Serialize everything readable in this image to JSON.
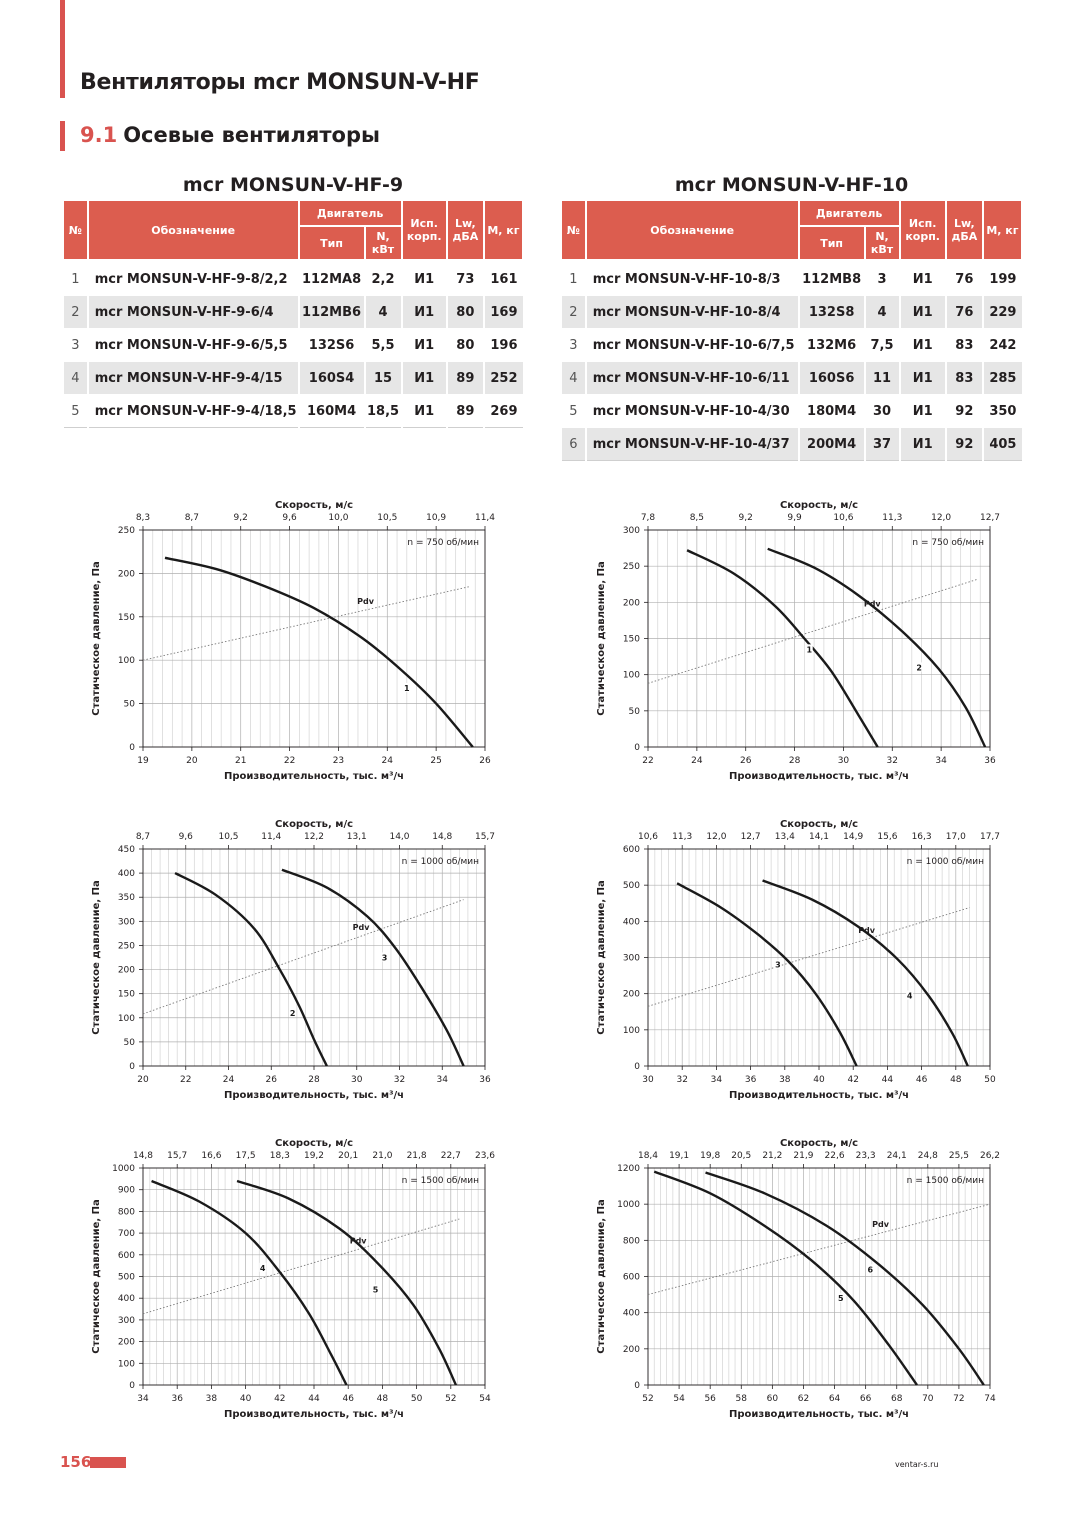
{
  "header": {
    "title": "Вентиляторы mcr MONSUN-V-HF",
    "section_number": "9.1",
    "section_title": "Осевые вентиляторы"
  },
  "table_headers": {
    "no": "№",
    "name": "Обозначение",
    "motor": "Двигатель",
    "type": "Тип",
    "power": "N, кВт",
    "housing": "Исп. корп.",
    "lw": "Lw, дБА",
    "mass": "М, кг"
  },
  "tables": [
    {
      "title": "mcr MONSUN-V-HF-9",
      "rows": [
        [
          "1",
          "mcr MONSUN-V-HF-9-8/2,2",
          "112MA8",
          "2,2",
          "И1",
          "73",
          "161"
        ],
        [
          "2",
          "mcr MONSUN-V-HF-9-6/4",
          "112MB6",
          "4",
          "И1",
          "80",
          "169"
        ],
        [
          "3",
          "mcr MONSUN-V-HF-9-6/5,5",
          "132S6",
          "5,5",
          "И1",
          "80",
          "196"
        ],
        [
          "4",
          "mcr MONSUN-V-HF-9-4/15",
          "160S4",
          "15",
          "И1",
          "89",
          "252"
        ],
        [
          "5",
          "mcr MONSUN-V-HF-9-4/18,5",
          "160M4",
          "18,5",
          "И1",
          "89",
          "269"
        ]
      ]
    },
    {
      "title": "mcr MONSUN-V-HF-10",
      "rows": [
        [
          "1",
          "mcr MONSUN-V-HF-10-8/3",
          "112MB8",
          "3",
          "И1",
          "76",
          "199"
        ],
        [
          "2",
          "mcr MONSUN-V-HF-10-8/4",
          "132S8",
          "4",
          "И1",
          "76",
          "229"
        ],
        [
          "3",
          "mcr MONSUN-V-HF-10-6/7,5",
          "132M6",
          "7,5",
          "И1",
          "83",
          "242"
        ],
        [
          "4",
          "mcr MONSUN-V-HF-10-6/11",
          "160S6",
          "11",
          "И1",
          "83",
          "285"
        ],
        [
          "5",
          "mcr MONSUN-V-HF-10-4/30",
          "180M4",
          "30",
          "И1",
          "92",
          "350"
        ],
        [
          "6",
          "mcr MONSUN-V-HF-10-4/37",
          "200M4",
          "37",
          "И1",
          "92",
          "405"
        ]
      ]
    }
  ],
  "chart_data": [
    {
      "type": "line",
      "speed_label": "Скорость, м/с",
      "xlabel": "Производительность, тыс. м³/ч",
      "ylabel": "Статическое давление, Па",
      "rpm_label": "n = 750 об/мин",
      "pdv_label": "Pdv",
      "xlim": [
        19,
        26
      ],
      "ylim": [
        0,
        250
      ],
      "x_ticks": [
        19,
        20,
        21,
        22,
        23,
        24,
        25,
        26
      ],
      "y_ticks": [
        0,
        50,
        100,
        150,
        200,
        250
      ],
      "speed_ticks": [
        "8,3",
        "8,7",
        "9,2",
        "9,6",
        "10,0",
        "10,5",
        "10,9",
        "11,4"
      ],
      "series": [
        {
          "name": "1",
          "x": [
            19.45,
            20.5,
            21.5,
            22.5,
            23.5,
            24.3,
            25.0,
            25.75
          ],
          "y": [
            218,
            205,
            185,
            160,
            125,
            88,
            50,
            0
          ],
          "label_at": [
            24.4,
            68
          ]
        }
      ],
      "pdv": {
        "x": [
          19,
          25.7
        ],
        "y": [
          100,
          185
        ]
      }
    },
    {
      "type": "line",
      "speed_label": "Скорость, м/с",
      "xlabel": "Производительность, тыс. м³/ч",
      "ylabel": "Статическое давление, Па",
      "rpm_label": "n = 750 об/мин",
      "pdv_label": "Pdv",
      "xlim": [
        22,
        36
      ],
      "ylim": [
        0,
        300
      ],
      "x_ticks": [
        22,
        24,
        26,
        28,
        30,
        32,
        34,
        36
      ],
      "y_ticks": [
        0,
        50,
        100,
        150,
        200,
        250,
        300
      ],
      "speed_ticks": [
        "7,8",
        "8,5",
        "9,2",
        "9,9",
        "10,6",
        "11,3",
        "12,0",
        "12,7"
      ],
      "series": [
        {
          "name": "1",
          "x": [
            23.6,
            25.5,
            27.2,
            28.4,
            29.5,
            30.6,
            31.4
          ],
          "y": [
            272,
            240,
            195,
            150,
            105,
            45,
            0
          ],
          "label_at": [
            28.6,
            135
          ]
        },
        {
          "name": "2",
          "x": [
            26.9,
            28.8,
            30.6,
            32.4,
            33.9,
            35.0,
            35.8
          ],
          "y": [
            274,
            248,
            210,
            160,
            108,
            55,
            0
          ],
          "label_at": [
            33.1,
            110
          ]
        }
      ],
      "pdv": {
        "x": [
          22,
          35.5
        ],
        "y": [
          88,
          232
        ]
      }
    },
    {
      "type": "line",
      "speed_label": "Скорость, м/с",
      "xlabel": "Производительность, тыс. м³/ч",
      "ylabel": "Статическое давление, Па",
      "rpm_label": "n = 1000 об/мин",
      "pdv_label": "Pdv",
      "xlim": [
        20,
        36
      ],
      "ylim": [
        0,
        450
      ],
      "x_ticks": [
        20,
        22,
        24,
        26,
        28,
        30,
        32,
        34,
        36
      ],
      "y_ticks": [
        0,
        50,
        100,
        150,
        200,
        250,
        300,
        350,
        400,
        450
      ],
      "speed_ticks": [
        "8,7",
        "9,6",
        "10,5",
        "11,4",
        "12,2",
        "13,1",
        "14,0",
        "14,8",
        "15,7"
      ],
      "series": [
        {
          "name": "2",
          "x": [
            21.5,
            23.4,
            25.2,
            26.4,
            27.3,
            28.0,
            28.6
          ],
          "y": [
            400,
            355,
            285,
            200,
            125,
            55,
            0
          ],
          "label_at": [
            27.0,
            110
          ]
        },
        {
          "name": "3",
          "x": [
            26.5,
            28.6,
            30.5,
            31.8,
            33.0,
            34.2,
            35.0
          ],
          "y": [
            407,
            370,
            310,
            245,
            165,
            75,
            0
          ],
          "label_at": [
            31.3,
            225
          ]
        }
      ],
      "pdv": {
        "x": [
          20,
          35
        ],
        "y": [
          108,
          345
        ]
      }
    },
    {
      "type": "line",
      "speed_label": "Скорость, м/с",
      "xlabel": "Производительность, тыс. м³/ч",
      "ylabel": "Статическое давление, Па",
      "rpm_label": "n = 1000 об/мин",
      "pdv_label": "Pdv",
      "xlim": [
        30,
        50
      ],
      "ylim": [
        0,
        600
      ],
      "x_ticks": [
        30,
        32,
        34,
        36,
        38,
        40,
        42,
        44,
        46,
        48,
        50
      ],
      "y_ticks": [
        0,
        100,
        200,
        300,
        400,
        500,
        600
      ],
      "speed_ticks": [
        "10,6",
        "11,3",
        "12,0",
        "12,7",
        "13,4",
        "14,1",
        "14,9",
        "15,6",
        "16,3",
        "17,0",
        "17,7"
      ],
      "series": [
        {
          "name": "3",
          "x": [
            31.7,
            34.2,
            36.4,
            38.2,
            39.8,
            41.2,
            42.2
          ],
          "y": [
            505,
            440,
            365,
            290,
            200,
            95,
            0
          ],
          "label_at": [
            37.6,
            280
          ]
        },
        {
          "name": "4",
          "x": [
            36.7,
            39.6,
            42.3,
            44.6,
            46.4,
            47.8,
            48.7
          ],
          "y": [
            513,
            460,
            385,
            295,
            195,
            90,
            0
          ],
          "label_at": [
            45.3,
            195
          ]
        }
      ],
      "pdv": {
        "x": [
          30,
          48.8
        ],
        "y": [
          165,
          438
        ]
      }
    },
    {
      "type": "line",
      "speed_label": "Скорость, м/с",
      "xlabel": "Производительность, тыс. м³/ч",
      "ylabel": "Статическое давление, Па",
      "rpm_label": "n = 1500 об/мин",
      "pdv_label": "Pdv",
      "xlim": [
        34,
        54
      ],
      "ylim": [
        0,
        1000
      ],
      "x_ticks": [
        34,
        36,
        38,
        40,
        42,
        44,
        46,
        48,
        50,
        52,
        54
      ],
      "y_ticks": [
        0,
        100,
        200,
        300,
        400,
        500,
        600,
        700,
        800,
        900,
        1000
      ],
      "speed_ticks": [
        "14,8",
        "15,7",
        "16,6",
        "17,5",
        "18,3",
        "19,2",
        "20,1",
        "21,0",
        "21,8",
        "22,7",
        "23,6"
      ],
      "series": [
        {
          "name": "4",
          "x": [
            34.5,
            37.3,
            40.0,
            42.0,
            43.7,
            45.0,
            45.9
          ],
          "y": [
            940,
            845,
            700,
            520,
            330,
            140,
            0
          ],
          "label_at": [
            41.0,
            540
          ]
        },
        {
          "name": "5",
          "x": [
            39.5,
            42.5,
            45.5,
            47.8,
            49.8,
            51.3,
            52.3
          ],
          "y": [
            940,
            860,
            720,
            555,
            370,
            170,
            0
          ],
          "label_at": [
            47.6,
            440
          ]
        }
      ],
      "pdv": {
        "x": [
          34,
          52.5
        ],
        "y": [
          328,
          765
        ]
      }
    },
    {
      "type": "line",
      "speed_label": "Скорость, м/с",
      "xlabel": "Производительность, тыс. м³/ч",
      "ylabel": "Статическое давление, Па",
      "rpm_label": "n = 1500 об/мин",
      "pdv_label": "Pdv",
      "xlim": [
        52,
        74
      ],
      "ylim": [
        0,
        1200
      ],
      "x_ticks": [
        52,
        54,
        56,
        58,
        60,
        62,
        64,
        66,
        68,
        70,
        72,
        74
      ],
      "y_ticks": [
        0,
        200,
        400,
        600,
        800,
        1000,
        1200
      ],
      "speed_ticks": [
        "18,4",
        "19,1",
        "19,8",
        "20,5",
        "21,2",
        "21,9",
        "22,6",
        "23,3",
        "24,1",
        "24,8",
        "25,5",
        "26,2"
      ],
      "series": [
        {
          "name": "5",
          "x": [
            52.4,
            56.0,
            59.5,
            62.5,
            65.2,
            67.5,
            69.3
          ],
          "y": [
            1180,
            1060,
            880,
            690,
            470,
            220,
            0
          ],
          "label_at": [
            64.4,
            480
          ]
        },
        {
          "name": "6",
          "x": [
            55.7,
            59.5,
            63.5,
            66.8,
            69.7,
            72.0,
            73.6
          ],
          "y": [
            1175,
            1060,
            880,
            670,
            440,
            200,
            0
          ],
          "label_at": [
            66.3,
            640
          ]
        }
      ],
      "pdv": {
        "x": [
          52,
          74
        ],
        "y": [
          500,
          1000
        ]
      }
    }
  ],
  "footer": {
    "page_number": "156",
    "site": "ventar-s.ru"
  }
}
